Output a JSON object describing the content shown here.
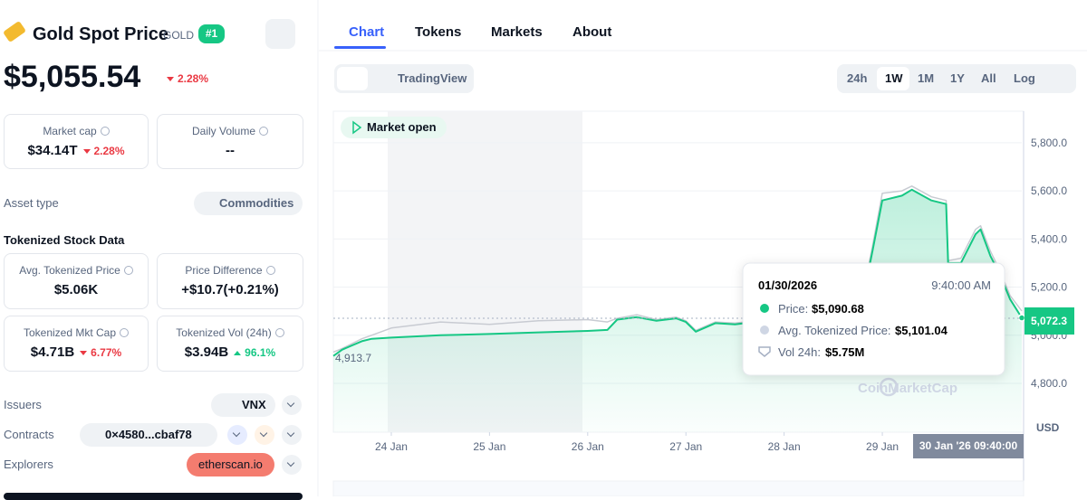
{
  "asset": {
    "name": "Gold Spot Price",
    "symbol": "GOLD",
    "rank": "#1",
    "price": "$5,055.54",
    "change": "2.28%"
  },
  "stats": [
    {
      "label": "Market cap",
      "value": "$34.14T",
      "change": "2.28%"
    },
    {
      "label": "Daily Volume",
      "value": "--"
    }
  ],
  "asset_type": {
    "label": "Asset type",
    "value": "Commodities"
  },
  "tokenized": {
    "title": "Tokenized Stock Data",
    "stats": [
      {
        "label": "Avg. Tokenized Price",
        "value": "$5.06K"
      },
      {
        "label": "Price Difference",
        "value": "+$10.7(+0.21%)"
      },
      {
        "label": "Tokenized Mkt Cap",
        "value": "$4.71B",
        "change": "6.77%"
      },
      {
        "label": "Tokenized Vol (24h)",
        "value": "$3.94B",
        "change": "96.1%"
      }
    ]
  },
  "links": [
    {
      "label": "Issuers",
      "value": "VNX"
    },
    {
      "label": "Contracts",
      "value": "0×4580...cbaf78"
    },
    {
      "label": "Explorers",
      "value": "etherscan.io"
    }
  ],
  "tabs": [
    "Chart",
    "Tokens",
    "Markets",
    "About"
  ],
  "chart_mode": "TradingView",
  "ranges": [
    "24h",
    "1W",
    "1M",
    "1Y",
    "All",
    "Log"
  ],
  "chart_data": {
    "type": "line",
    "status": "Market open",
    "watermark": "CoinMarketCap",
    "currency": "USD",
    "x": [
      23.41,
      23.5,
      23.7,
      23.8,
      24.0,
      24.5,
      25.0,
      25.5,
      26.0,
      26.2,
      26.3,
      26.5,
      26.7,
      26.9,
      27.0,
      27.1,
      27.3,
      27.5,
      27.8,
      28.0,
      28.2,
      28.4,
      28.6,
      28.8,
      28.9,
      29.0,
      29.2,
      29.3,
      29.5,
      29.65,
      29.67,
      29.8,
      29.95,
      30.0,
      30.1,
      30.2,
      30.3,
      30.42
    ],
    "series": [
      {
        "color": "#16c784",
        "values": [
          4913.7,
          4940,
          4975,
          4985,
          4990,
          5000,
          5005,
          5012,
          5018,
          5022,
          5065,
          5075,
          5060,
          5070,
          5055,
          5015,
          5050,
          5045,
          5060,
          5065,
          5070,
          5080,
          5100,
          5150,
          5350,
          5560,
          5580,
          5605,
          5560,
          5545,
          5300,
          5300,
          5420,
          5440,
          5330,
          5250,
          5150,
          5072.3
        ]
      },
      {
        "color": "#c8cbd2",
        "values": [
          4930,
          4945,
          4985,
          5000,
          5030,
          5055,
          5045,
          5060,
          5065,
          5055,
          5070,
          5085,
          5065,
          5075,
          5060,
          5020,
          5055,
          5050,
          5065,
          5075,
          5080,
          5090,
          5110,
          5165,
          5370,
          5590,
          5600,
          5620,
          5575,
          5560,
          5310,
          5320,
          5440,
          5455,
          5350,
          5265,
          5165,
          5101.04
        ]
      }
    ],
    "xlim": [
      23.41,
      30.42
    ],
    "xticks": [
      {
        "value": 24,
        "label": "24 Jan"
      },
      {
        "value": 25,
        "label": "25 Jan"
      },
      {
        "value": 26,
        "label": "26 Jan"
      },
      {
        "value": 27,
        "label": "27 Jan"
      },
      {
        "value": 28,
        "label": "28 Jan"
      },
      {
        "value": 29,
        "label": "29 Jan"
      }
    ],
    "ylim": [
      4597,
      5931
    ],
    "yticks": [
      {
        "value": 4800,
        "label": "4,800.0"
      },
      {
        "value": 5000,
        "label": "5,000.0"
      },
      {
        "value": 5200,
        "label": "5,200.0"
      },
      {
        "value": 5400,
        "label": "5,400.0"
      },
      {
        "value": 5600,
        "label": "5,600.0"
      },
      {
        "value": 5800,
        "label": "5,800.0"
      }
    ],
    "grid": true,
    "low_label": "4,913.7",
    "last_label": "5,072.3",
    "crosshair_label": "30 Jan '26 09:40:00",
    "tooltip": {
      "date": "01/30/2026",
      "time": "9:40:00 AM",
      "rows": [
        {
          "label": "Price:",
          "value": "$5,090.68"
        },
        {
          "label": "Avg. Tokenized Price:",
          "value": "$5,101.04"
        },
        {
          "label": "Vol 24h:",
          "value": "$5.75M"
        }
      ]
    }
  }
}
